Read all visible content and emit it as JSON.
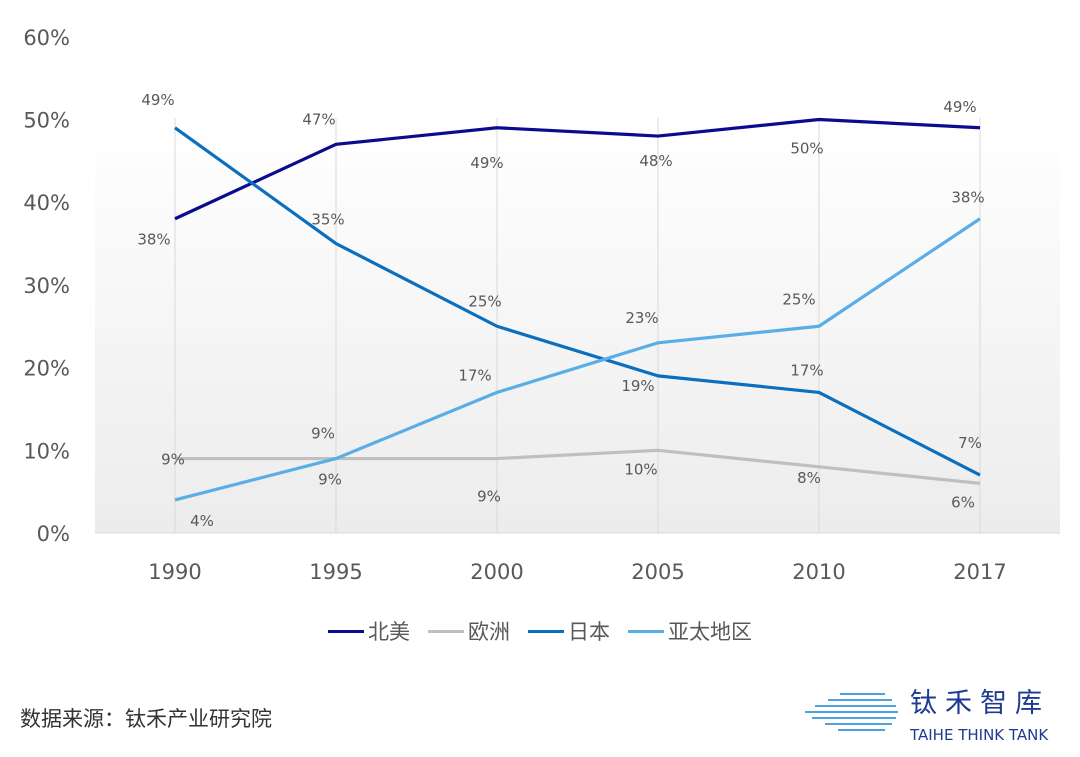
{
  "chart_data": {
    "type": "line",
    "categories": [
      "1990",
      "1995",
      "2000",
      "2005",
      "2010",
      "2017"
    ],
    "ylim": [
      0,
      60
    ],
    "yticks": [
      "0%",
      "10%",
      "20%",
      "30%",
      "40%",
      "50%",
      "60%"
    ],
    "grid": "vertical",
    "legend_position": "bottom",
    "series": [
      {
        "name": "北美",
        "color": "#0b0b8f",
        "values": [
          38,
          47,
          49,
          48,
          50,
          49
        ],
        "labels": [
          "38%",
          "47%",
          "49%",
          "48%",
          "50%",
          "49%"
        ]
      },
      {
        "name": "欧洲",
        "color": "#bfbfbf",
        "values": [
          9,
          9,
          9,
          10,
          8,
          6
        ],
        "labels": [
          "9%",
          "9%",
          "9%",
          "10%",
          "8%",
          "6%"
        ]
      },
      {
        "name": "日本",
        "color": "#0b6fbd",
        "values": [
          49,
          35,
          25,
          19,
          17,
          7
        ],
        "labels": [
          "49%",
          "35%",
          "25%",
          "19%",
          "17%",
          "7%"
        ]
      },
      {
        "name": "亚太地区",
        "color": "#5aaee6",
        "values": [
          4,
          9,
          17,
          23,
          25,
          38
        ],
        "labels": [
          "4%",
          "9%",
          "17%",
          "23%",
          "25%",
          "38%"
        ]
      }
    ]
  },
  "source": "数据来源：钛禾产业研究院",
  "logo": {
    "cn": "钛禾智库",
    "en": "TAIHE THINK TANK"
  }
}
